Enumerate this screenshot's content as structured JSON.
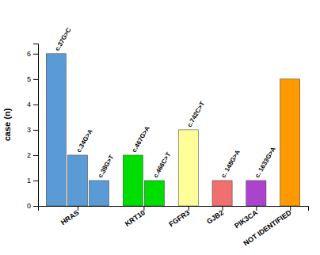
{
  "chart_data": {
    "type": "bar",
    "categories": [
      "HRAS",
      "KRT10",
      "FGFR3",
      "GJB2",
      "PIK3CA",
      "NOT IDENTIFIED"
    ],
    "values": [
      [
        6,
        2,
        1
      ],
      [
        2,
        1
      ],
      [
        3
      ],
      [
        1
      ],
      [
        1
      ],
      [
        5
      ]
    ],
    "annotations": [
      [
        "c.37G>C",
        "c.34G>A",
        "c.38G>T"
      ],
      [
        "c.467G>A",
        "c.466C>T"
      ],
      [
        "c.742C>T"
      ],
      [
        "c. 148G>A"
      ],
      [
        "c. 1633G>A"
      ],
      [
        null
      ]
    ],
    "colors": [
      [
        "#5B9BD5",
        "#5B9BD5",
        "#5B9BD5"
      ],
      [
        "#00DD00",
        "#00DD00"
      ],
      [
        "#FFFF99"
      ],
      [
        "#F07070"
      ],
      [
        "#AA44CC"
      ],
      [
        "#FF9900"
      ]
    ],
    "ylabel": "case (n)",
    "ylim": [
      0,
      6.4
    ],
    "yticks": [
      0,
      1,
      2,
      3,
      4,
      5,
      6
    ],
    "grid": false
  }
}
